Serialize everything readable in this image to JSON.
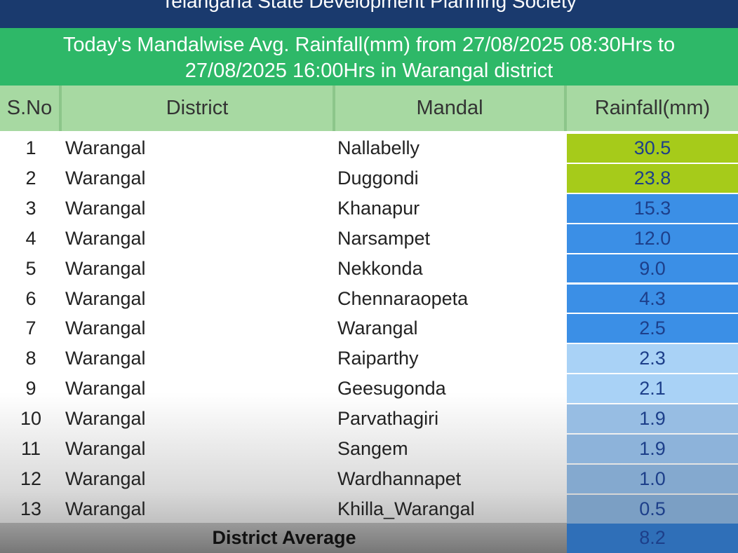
{
  "header": {
    "title": "Telangana State Development Planning Society",
    "subtitle": "Today's Mandalwise Avg. Rainfall(mm) from 27/08/2025 08:30Hrs to 27/08/2025 16:00Hrs in Warangal district"
  },
  "table": {
    "columns": [
      "S.No",
      "District",
      "Mandal",
      "Rainfall(mm)"
    ],
    "rows": [
      {
        "cells": [
          "1",
          "Warangal",
          "Nallabelly",
          "30.5"
        ],
        "color": "#a6cb1a"
      },
      {
        "cells": [
          "2",
          "Warangal",
          "Duggondi",
          "23.8"
        ],
        "color": "#a6cb1a"
      },
      {
        "cells": [
          "3",
          "Warangal",
          "Khanapur",
          "15.3"
        ],
        "color": "#3b8fe6"
      },
      {
        "cells": [
          "4",
          "Warangal",
          "Narsampet",
          "12.0"
        ],
        "color": "#3b8fe6"
      },
      {
        "cells": [
          "5",
          "Warangal",
          "Nekkonda",
          "9.0"
        ],
        "color": "#3b8fe6"
      },
      {
        "cells": [
          "6",
          "Warangal",
          "Chennaraopeta",
          "4.3"
        ],
        "color": "#3b8fe6"
      },
      {
        "cells": [
          "7",
          "Warangal",
          "Warangal",
          "2.5"
        ],
        "color": "#3b8fe6"
      },
      {
        "cells": [
          "8",
          "Warangal",
          "Raiparthy",
          "2.3"
        ],
        "color": "#a9d2f6"
      },
      {
        "cells": [
          "9",
          "Warangal",
          "Geesugonda",
          "2.1"
        ],
        "color": "#a9d2f6"
      },
      {
        "cells": [
          "10",
          "Warangal",
          "Parvathagiri",
          "1.9"
        ],
        "color": "#97bde3"
      },
      {
        "cells": [
          "11",
          "Warangal",
          "Sangem",
          "1.9"
        ],
        "color": "#8db3da"
      },
      {
        "cells": [
          "12",
          "Warangal",
          "Wardhannapet",
          "1.0"
        ],
        "color": "#84a9cf"
      },
      {
        "cells": [
          "13",
          "Warangal",
          "Khilla_Warangal",
          "0.5"
        ],
        "color": "#7b9fc4"
      }
    ],
    "footer": {
      "label": "District Average",
      "value": "8.2"
    }
  }
}
